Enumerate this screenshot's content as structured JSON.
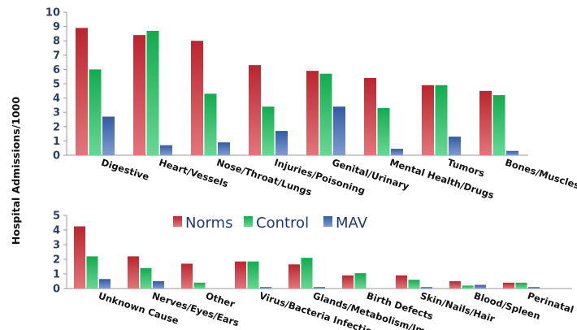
{
  "chart_data": {
    "type": "bar",
    "ylabel": "Hospital Admissions/1000",
    "legend": {
      "placement": "between-panels",
      "entries": [
        "Norms",
        "Control",
        "MAV"
      ]
    },
    "colors": {
      "Norms": "#d42a34",
      "Control": "#16c25a",
      "MAV": "#3a67b8"
    },
    "panels": [
      {
        "categories": [
          "Digestive",
          "Heart/Vessels",
          "Nose/Throat/Lungs",
          "Injuries/Poisoning",
          "Genital/Urinary",
          "Mental Health/Drugs",
          "Tumors",
          "Bones/Muscles"
        ],
        "ylim": [
          0,
          10
        ],
        "yticks": [
          "0",
          "1",
          "2",
          "3",
          "4",
          "5",
          "6",
          "7",
          "8",
          "9",
          "10"
        ],
        "series": [
          {
            "name": "Norms",
            "values": [
              8.9,
              8.4,
              8.0,
              6.3,
              5.9,
              5.4,
              4.9,
              4.5
            ]
          },
          {
            "name": "Control",
            "values": [
              6.0,
              8.7,
              4.3,
              3.4,
              5.7,
              3.3,
              4.9,
              4.2
            ]
          },
          {
            "name": "MAV",
            "values": [
              2.7,
              0.7,
              0.9,
              1.7,
              3.4,
              0.45,
              1.3,
              0.3
            ]
          }
        ]
      },
      {
        "categories": [
          "Unknown Cause",
          "Nerves/Eyes/Ears",
          "Other",
          "Virus/Bacteria Infections",
          "Glands/Metabolism/Immune",
          "Birth Defects",
          "Skin/Nails/Hair",
          "Blood/Spleen",
          "Perinatal"
        ],
        "ylim": [
          0,
          5
        ],
        "yticks": [
          "0",
          "1",
          "2",
          "3",
          "4",
          "5"
        ],
        "series": [
          {
            "name": "Norms",
            "values": [
              4.25,
              2.2,
              1.7,
              1.85,
              1.65,
              0.9,
              0.9,
              0.5,
              0.4
            ]
          },
          {
            "name": "Control",
            "values": [
              2.2,
              1.4,
              0.4,
              1.85,
              2.1,
              1.05,
              0.6,
              0.2,
              0.4
            ]
          },
          {
            "name": "MAV",
            "values": [
              0.65,
              0.5,
              0.0,
              0.1,
              0.1,
              0.0,
              0.1,
              0.25,
              0.1
            ]
          }
        ]
      }
    ]
  }
}
